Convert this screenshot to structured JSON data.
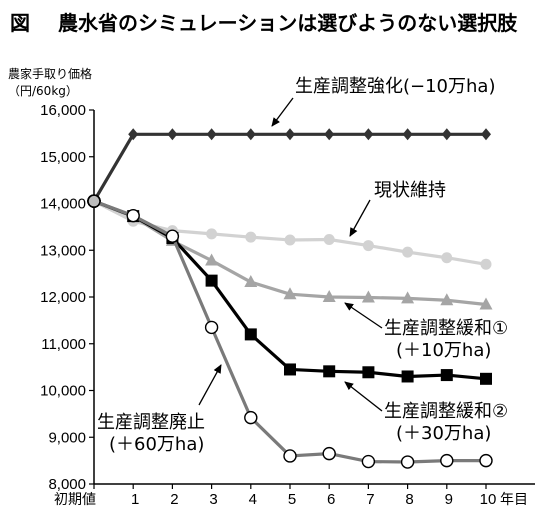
{
  "figure_label": "図",
  "title": "農水省のシミュレーションは選びようのない選択肢",
  "y_axis_label_line1": "農家手取り価格",
  "y_axis_label_line2": "（円/60kg）",
  "chart_data": {
    "type": "line",
    "categories": [
      "初期値",
      "1",
      "2",
      "3",
      "4",
      "5",
      "6",
      "7",
      "8",
      "9",
      "10"
    ],
    "x_unit": "年目",
    "ylim": [
      8000,
      16000
    ],
    "y_ticks": [
      "8,000",
      "9,000",
      "10,000",
      "11,000",
      "12,000",
      "13,000",
      "14,000",
      "15,000",
      "16,000"
    ],
    "grid": false,
    "series": [
      {
        "name": "生産調整強化（−10万ha）",
        "marker": "diamond",
        "line_color": "#333333",
        "marker_color": "#333333",
        "values": [
          14050,
          15480,
          15480,
          15480,
          15480,
          15480,
          15480,
          15480,
          15480,
          15480,
          15480
        ]
      },
      {
        "name": "現状維持",
        "marker": "circle",
        "line_color": "#d2d2d2",
        "marker_color": "#d2d2d2",
        "values": [
          14050,
          13620,
          13420,
          13350,
          13280,
          13220,
          13230,
          13100,
          12960,
          12840,
          12700
        ]
      },
      {
        "name": "生産調整緩和① （＋10万ha）",
        "marker": "triangle",
        "line_color": "#a5a5a5",
        "marker_color": "#a5a5a5",
        "values": [
          14050,
          13720,
          13200,
          12780,
          12320,
          12060,
          12000,
          11990,
          11970,
          11930,
          11840
        ]
      },
      {
        "name": "生産調整緩和② （＋30万ha）",
        "marker": "square",
        "line_color": "#000000",
        "marker_color": "#000000",
        "values": [
          14050,
          13730,
          13260,
          12350,
          11200,
          10450,
          10410,
          10390,
          10300,
          10330,
          10250
        ]
      },
      {
        "name": "生産調整廃止 （＋60万ha）",
        "marker": "hollow-circle",
        "line_color": "#7a7a7a",
        "marker_color": "#ffffff",
        "values": [
          14050,
          13740,
          13300,
          11350,
          9420,
          8600,
          8650,
          8480,
          8470,
          8500,
          8500
        ]
      }
    ],
    "annotations": [
      {
        "lines": [
          "生産調整強化(−10万ha)"
        ],
        "series_index": 0
      },
      {
        "lines": [
          "現状維持"
        ],
        "series_index": 1
      },
      {
        "lines": [
          "生産調整緩和①",
          "(＋10万ha)"
        ],
        "series_index": 2
      },
      {
        "lines": [
          "生産調整緩和②",
          "(＋30万ha)"
        ],
        "series_index": 3
      },
      {
        "lines": [
          "生産調整廃止",
          "(＋60万ha)"
        ],
        "series_index": 4
      }
    ]
  }
}
